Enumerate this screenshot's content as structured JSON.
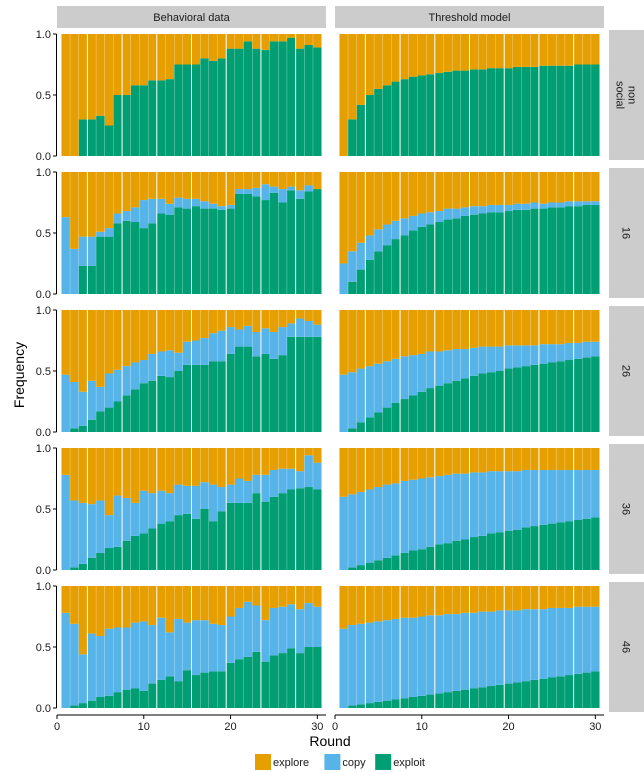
{
  "chart_data": {
    "type": "bar",
    "stacked": true,
    "facets": {
      "columns": [
        "Behavioral data",
        "Threshold model"
      ],
      "rows": [
        {
          "key": "nonsocial",
          "label_lines": [
            "non",
            "social"
          ]
        },
        {
          "key": "16",
          "label_lines": [
            "16"
          ]
        },
        {
          "key": "26",
          "label_lines": [
            "26"
          ]
        },
        {
          "key": "36",
          "label_lines": [
            "36"
          ]
        },
        {
          "key": "46",
          "label_lines": [
            "46"
          ]
        }
      ]
    },
    "xlabel": "Round",
    "ylabel": "Frequency",
    "xlim": [
      0,
      31
    ],
    "ylim": [
      0,
      1
    ],
    "xticks": [
      0,
      10,
      20,
      30
    ],
    "yticks": [
      "0.0",
      "0.5",
      "1.0"
    ],
    "legend": {
      "position": "bottom",
      "entries": [
        {
          "name": "explore",
          "color": "#E69F00"
        },
        {
          "name": "copy",
          "color": "#56B4E9"
        },
        {
          "name": "exploit",
          "color": "#009E73"
        }
      ]
    },
    "stack_order": [
      "exploit",
      "copy",
      "explore"
    ],
    "rounds": [
      1,
      2,
      3,
      4,
      5,
      6,
      7,
      8,
      9,
      10,
      11,
      12,
      13,
      14,
      15,
      16,
      17,
      18,
      19,
      20,
      21,
      22,
      23,
      24,
      25,
      26,
      27,
      28,
      29,
      30
    ],
    "panels": {
      "Behavioral data": {
        "nonsocial": {
          "exploit": [
            0,
            0,
            0.3,
            0.3,
            0.33,
            0.25,
            0.5,
            0.5,
            0.58,
            0.58,
            0.62,
            0.62,
            0.63,
            0.75,
            0.75,
            0.75,
            0.8,
            0.78,
            0.8,
            0.88,
            0.88,
            0.94,
            0.88,
            0.87,
            0.94,
            0.94,
            0.97,
            0.88,
            0.91,
            0.89
          ],
          "copy": [
            0,
            0,
            0,
            0,
            0,
            0,
            0,
            0,
            0,
            0,
            0,
            0,
            0,
            0,
            0,
            0,
            0,
            0,
            0,
            0,
            0,
            0,
            0,
            0,
            0,
            0,
            0,
            0,
            0,
            0
          ]
        },
        "16": {
          "exploit": [
            0,
            0,
            0.23,
            0.23,
            0.47,
            0.47,
            0.58,
            0.6,
            0.59,
            0.54,
            0.58,
            0.66,
            0.65,
            0.71,
            0.7,
            0.72,
            0.7,
            0.7,
            0.69,
            0.7,
            0.82,
            0.82,
            0.8,
            0.77,
            0.83,
            0.75,
            0.85,
            0.78,
            0.84,
            0.86
          ],
          "copy": [
            0.63,
            0.37,
            0.24,
            0.24,
            0.04,
            0.07,
            0.08,
            0.08,
            0.12,
            0.23,
            0.2,
            0.12,
            0.09,
            0.08,
            0.08,
            0.06,
            0.06,
            0.04,
            0.03,
            0.03,
            0.04,
            0.04,
            0.07,
            0.13,
            0.05,
            0.11,
            0.03,
            0.07,
            0.05,
            0
          ]
        },
        "26": {
          "exploit": [
            0,
            0.03,
            0.05,
            0.1,
            0.17,
            0.2,
            0.25,
            0.3,
            0.35,
            0.4,
            0.42,
            0.46,
            0.45,
            0.5,
            0.55,
            0.55,
            0.55,
            0.58,
            0.58,
            0.64,
            0.7,
            0.7,
            0.62,
            0.64,
            0.6,
            0.63,
            0.78,
            0.78,
            0.78,
            0.78
          ],
          "copy": [
            0.47,
            0.38,
            0.28,
            0.32,
            0.2,
            0.28,
            0.26,
            0.24,
            0.22,
            0.19,
            0.22,
            0.2,
            0.22,
            0.15,
            0.19,
            0.2,
            0.22,
            0.23,
            0.25,
            0.22,
            0.14,
            0.17,
            0.2,
            0.21,
            0.22,
            0.23,
            0.11,
            0.15,
            0.13,
            0.1
          ]
        },
        "36": {
          "exploit": [
            0,
            0.02,
            0.05,
            0.1,
            0.14,
            0.18,
            0.19,
            0.24,
            0.28,
            0.3,
            0.34,
            0.38,
            0.4,
            0.45,
            0.46,
            0.42,
            0.5,
            0.4,
            0.48,
            0.55,
            0.55,
            0.55,
            0.63,
            0.56,
            0.6,
            0.63,
            0.66,
            0.67,
            0.68,
            0.66
          ],
          "copy": [
            0.78,
            0.55,
            0.5,
            0.44,
            0.43,
            0.27,
            0.42,
            0.35,
            0.27,
            0.35,
            0.29,
            0.27,
            0.23,
            0.25,
            0.23,
            0.27,
            0.22,
            0.3,
            0.2,
            0.15,
            0.2,
            0.18,
            0.15,
            0.22,
            0.22,
            0.2,
            0.17,
            0.14,
            0.26,
            0.22
          ]
        },
        "46": {
          "exploit": [
            0,
            0.02,
            0.04,
            0.06,
            0.09,
            0.1,
            0.13,
            0.15,
            0.16,
            0.14,
            0.2,
            0.23,
            0.26,
            0.22,
            0.31,
            0.27,
            0.29,
            0.3,
            0.3,
            0.37,
            0.4,
            0.42,
            0.46,
            0.38,
            0.43,
            0.45,
            0.49,
            0.45,
            0.5,
            0.5
          ],
          "copy": [
            0.78,
            0.67,
            0.4,
            0.55,
            0.5,
            0.55,
            0.53,
            0.51,
            0.54,
            0.57,
            0.48,
            0.51,
            0.36,
            0.51,
            0.39,
            0.45,
            0.43,
            0.39,
            0.38,
            0.38,
            0.42,
            0.45,
            0.38,
            0.34,
            0.39,
            0.38,
            0.36,
            0.36,
            0.36,
            0.33
          ]
        }
      },
      "Threshold model": {
        "nonsocial": {
          "exploit": [
            0,
            0.3,
            0.42,
            0.5,
            0.55,
            0.58,
            0.61,
            0.63,
            0.65,
            0.66,
            0.67,
            0.68,
            0.69,
            0.7,
            0.7,
            0.71,
            0.71,
            0.72,
            0.72,
            0.72,
            0.73,
            0.73,
            0.73,
            0.74,
            0.74,
            0.74,
            0.74,
            0.75,
            0.75,
            0.75
          ],
          "copy": [
            0,
            0,
            0,
            0,
            0,
            0,
            0,
            0,
            0,
            0,
            0,
            0,
            0,
            0,
            0,
            0,
            0,
            0,
            0,
            0,
            0,
            0,
            0,
            0,
            0,
            0,
            0,
            0,
            0,
            0
          ]
        },
        "16": {
          "exploit": [
            0,
            0.1,
            0.2,
            0.28,
            0.35,
            0.4,
            0.45,
            0.48,
            0.52,
            0.55,
            0.57,
            0.59,
            0.61,
            0.62,
            0.64,
            0.65,
            0.66,
            0.67,
            0.67,
            0.68,
            0.69,
            0.69,
            0.7,
            0.7,
            0.71,
            0.71,
            0.72,
            0.72,
            0.73,
            0.73
          ],
          "copy": [
            0.25,
            0.25,
            0.22,
            0.2,
            0.18,
            0.17,
            0.15,
            0.14,
            0.12,
            0.11,
            0.1,
            0.09,
            0.09,
            0.08,
            0.07,
            0.07,
            0.06,
            0.06,
            0.06,
            0.05,
            0.05,
            0.05,
            0.05,
            0.04,
            0.04,
            0.04,
            0.04,
            0.04,
            0.03,
            0.03
          ]
        },
        "26": {
          "exploit": [
            0,
            0.03,
            0.08,
            0.12,
            0.16,
            0.2,
            0.24,
            0.27,
            0.3,
            0.33,
            0.36,
            0.38,
            0.4,
            0.42,
            0.44,
            0.46,
            0.48,
            0.49,
            0.5,
            0.52,
            0.53,
            0.54,
            0.55,
            0.56,
            0.57,
            0.58,
            0.59,
            0.6,
            0.61,
            0.62
          ],
          "copy": [
            0.47,
            0.46,
            0.44,
            0.42,
            0.4,
            0.38,
            0.36,
            0.35,
            0.33,
            0.31,
            0.3,
            0.28,
            0.27,
            0.26,
            0.24,
            0.23,
            0.22,
            0.21,
            0.2,
            0.19,
            0.18,
            0.17,
            0.16,
            0.16,
            0.15,
            0.14,
            0.14,
            0.13,
            0.13,
            0.12
          ]
        },
        "36": {
          "exploit": [
            0,
            0.02,
            0.04,
            0.06,
            0.08,
            0.1,
            0.12,
            0.14,
            0.16,
            0.17,
            0.19,
            0.21,
            0.22,
            0.24,
            0.25,
            0.27,
            0.28,
            0.3,
            0.31,
            0.32,
            0.33,
            0.35,
            0.36,
            0.37,
            0.38,
            0.39,
            0.4,
            0.41,
            0.42,
            0.43
          ],
          "copy": [
            0.6,
            0.6,
            0.6,
            0.6,
            0.6,
            0.6,
            0.59,
            0.59,
            0.58,
            0.58,
            0.57,
            0.56,
            0.56,
            0.55,
            0.54,
            0.53,
            0.52,
            0.51,
            0.5,
            0.49,
            0.48,
            0.47,
            0.46,
            0.45,
            0.44,
            0.43,
            0.42,
            0.41,
            0.4,
            0.39
          ]
        },
        "46": {
          "exploit": [
            0,
            0.02,
            0.03,
            0.04,
            0.05,
            0.06,
            0.07,
            0.08,
            0.09,
            0.1,
            0.11,
            0.12,
            0.13,
            0.14,
            0.15,
            0.16,
            0.17,
            0.18,
            0.19,
            0.2,
            0.21,
            0.22,
            0.23,
            0.24,
            0.25,
            0.26,
            0.27,
            0.28,
            0.29,
            0.3
          ],
          "copy": [
            0.65,
            0.66,
            0.66,
            0.66,
            0.66,
            0.66,
            0.66,
            0.66,
            0.65,
            0.65,
            0.65,
            0.64,
            0.64,
            0.63,
            0.63,
            0.62,
            0.62,
            0.61,
            0.61,
            0.6,
            0.59,
            0.59,
            0.58,
            0.57,
            0.57,
            0.56,
            0.55,
            0.55,
            0.54,
            0.53
          ]
        }
      }
    }
  }
}
